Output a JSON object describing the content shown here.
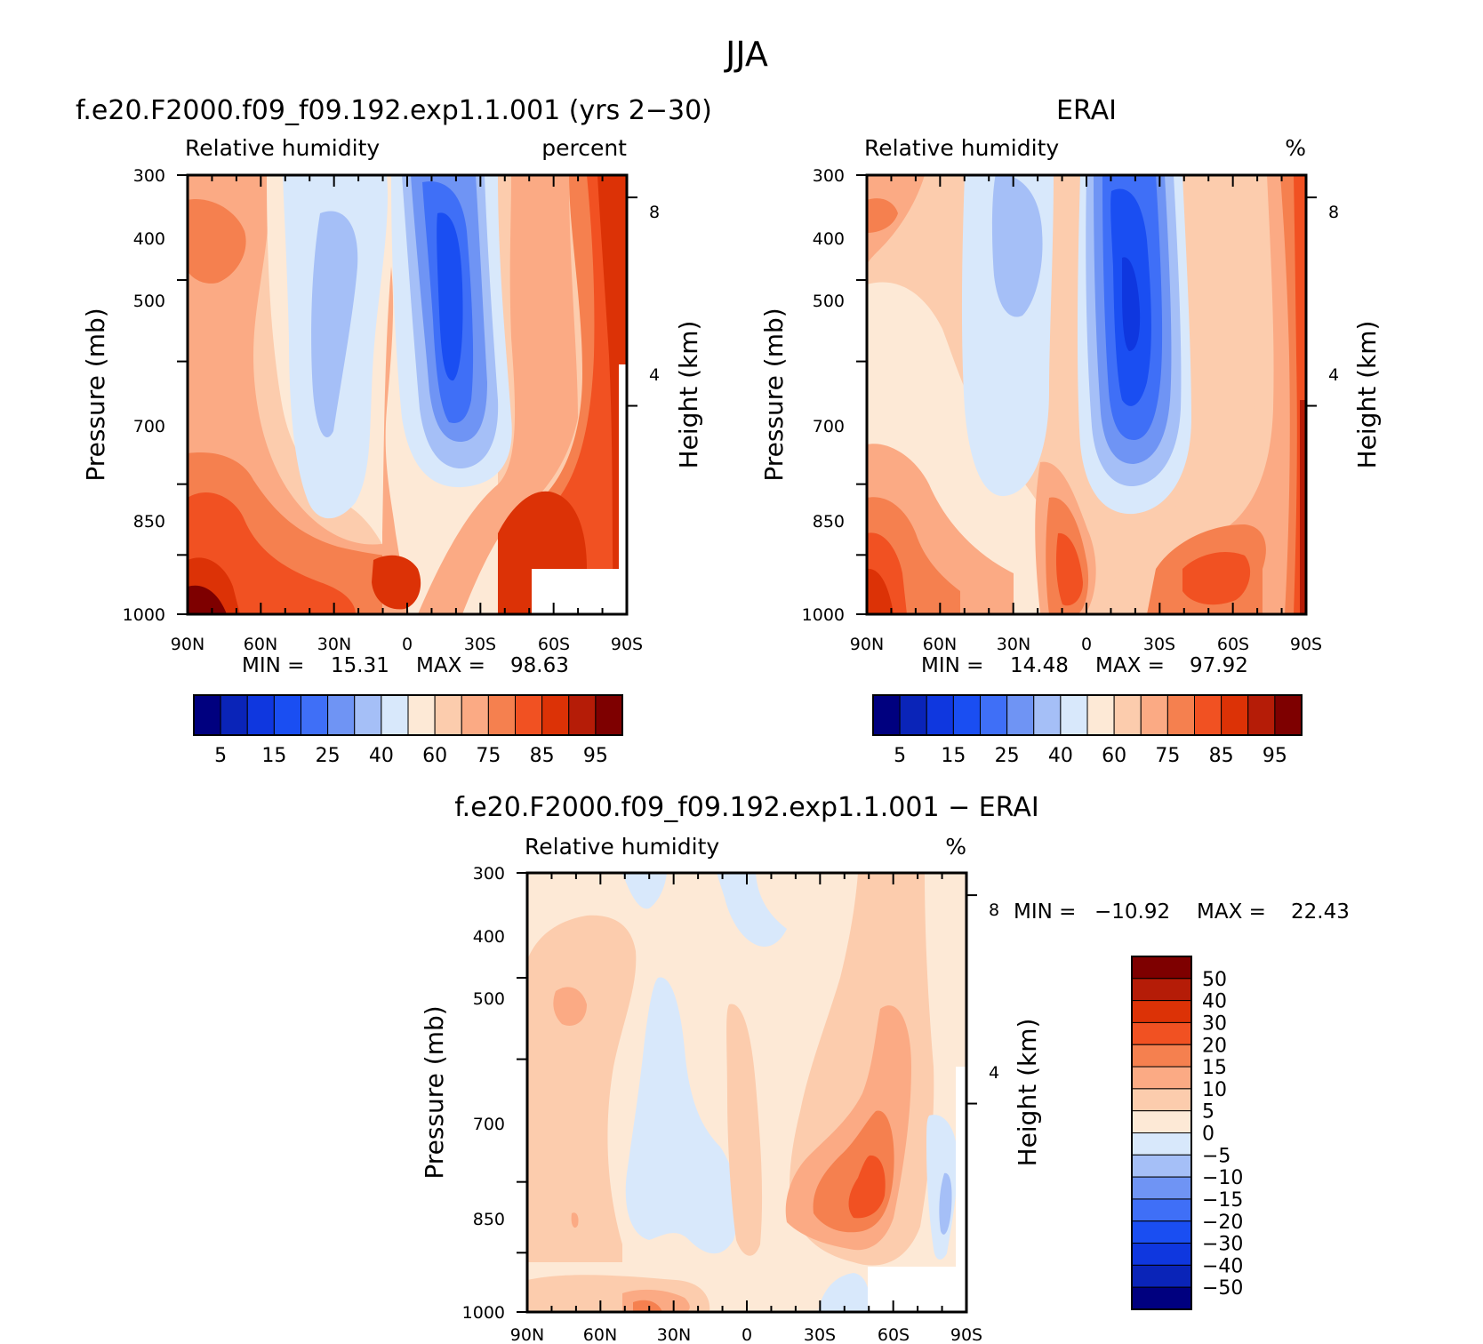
{
  "figure": {
    "title": "JJA"
  },
  "chart_data": [
    {
      "type": "heatmap",
      "title": "f.e20.F2000.f09_f09.192.exp1.1.001 (yrs 2−30)",
      "left_label": "Relative humidity",
      "right_label": "percent",
      "xlabel": "",
      "ylabel": "Pressure (mb)",
      "y2label": "Height (km)",
      "x_ticks": [
        "90N",
        "60N",
        "30N",
        "0",
        "30S",
        "60S",
        "90S"
      ],
      "y_ticks": [
        "300",
        "400",
        "500",
        "700",
        "850",
        "1000"
      ],
      "y2_ticks": [
        "8",
        "4"
      ],
      "xlim": [
        90,
        -90
      ],
      "ylim": [
        1000,
        300
      ],
      "y_scale": "log",
      "min_label": "MIN =",
      "min_value": "15.31",
      "max_label": "MAX =",
      "max_value": "98.63",
      "min": 15.31,
      "max": 98.63,
      "colorbar": {
        "orientation": "horizontal",
        "levels": [
          5,
          10,
          15,
          20,
          25,
          30,
          40,
          50,
          60,
          70,
          75,
          80,
          85,
          90,
          95
        ],
        "labels": [
          "5",
          "15",
          "25",
          "40",
          "60",
          "75",
          "85",
          "95"
        ],
        "colors": [
          "#00007f",
          "#0a24b8",
          "#0f37df",
          "#1a4ef2",
          "#3f6ff7",
          "#6f94f4",
          "#a5bff7",
          "#d8e8fb",
          "#fde9d6",
          "#fcccad",
          "#fbaa84",
          "#f5804f",
          "#f15122",
          "#dc3206",
          "#b51c07",
          "#7e0000"
        ]
      },
      "grid": false
    },
    {
      "type": "heatmap",
      "title": "ERAI",
      "left_label": "Relative humidity",
      "right_label": "%",
      "xlabel": "",
      "ylabel": "Pressure (mb)",
      "y2label": "Height (km)",
      "x_ticks": [
        "90N",
        "60N",
        "30N",
        "0",
        "30S",
        "60S",
        "90S"
      ],
      "y_ticks": [
        "300",
        "400",
        "500",
        "700",
        "850",
        "1000"
      ],
      "y2_ticks": [
        "8",
        "4"
      ],
      "xlim": [
        90,
        -90
      ],
      "ylim": [
        1000,
        300
      ],
      "y_scale": "log",
      "min_label": "MIN =",
      "min_value": "14.48",
      "max_label": "MAX =",
      "max_value": "97.92",
      "min": 14.48,
      "max": 97.92,
      "colorbar": {
        "orientation": "horizontal",
        "levels": [
          5,
          10,
          15,
          20,
          25,
          30,
          40,
          50,
          60,
          70,
          75,
          80,
          85,
          90,
          95
        ],
        "labels": [
          "5",
          "15",
          "25",
          "40",
          "60",
          "75",
          "85",
          "95"
        ],
        "colors": [
          "#00007f",
          "#0a24b8",
          "#0f37df",
          "#1a4ef2",
          "#3f6ff7",
          "#6f94f4",
          "#a5bff7",
          "#d8e8fb",
          "#fde9d6",
          "#fcccad",
          "#fbaa84",
          "#f5804f",
          "#f15122",
          "#dc3206",
          "#b51c07",
          "#7e0000"
        ]
      },
      "grid": false
    },
    {
      "type": "heatmap",
      "title": "f.e20.F2000.f09_f09.192.exp1.1.001 − ERAI",
      "left_label": "Relative humidity",
      "right_label": "%",
      "xlabel": "",
      "ylabel": "Pressure (mb)",
      "y2label": "Height (km)",
      "x_ticks": [
        "90N",
        "60N",
        "30N",
        "0",
        "30S",
        "60S",
        "90S"
      ],
      "y_ticks": [
        "300",
        "400",
        "500",
        "700",
        "850",
        "1000"
      ],
      "y2_ticks": [
        "8",
        "4"
      ],
      "xlim": [
        90,
        -90
      ],
      "ylim": [
        1000,
        300
      ],
      "y_scale": "log",
      "min_label": "MIN =",
      "min_value": "−10.92",
      "max_label": "MAX =",
      "max_value": "22.43",
      "min": -10.92,
      "max": 22.43,
      "colorbar": {
        "orientation": "vertical",
        "labels": [
          "50",
          "40",
          "30",
          "20",
          "15",
          "10",
          "5",
          "0",
          "−5",
          "−10",
          "−15",
          "−20",
          "−30",
          "−40",
          "−50"
        ],
        "colors": [
          "#7e0000",
          "#b51c07",
          "#dc3206",
          "#f15122",
          "#f5804f",
          "#fbaa84",
          "#fcccad",
          "#fde9d6",
          "#d8e8fb",
          "#a5bff7",
          "#6f94f4",
          "#3f6ff7",
          "#1a4ef2",
          "#0f37df",
          "#0a24b8",
          "#00007f"
        ]
      },
      "grid": false
    }
  ]
}
